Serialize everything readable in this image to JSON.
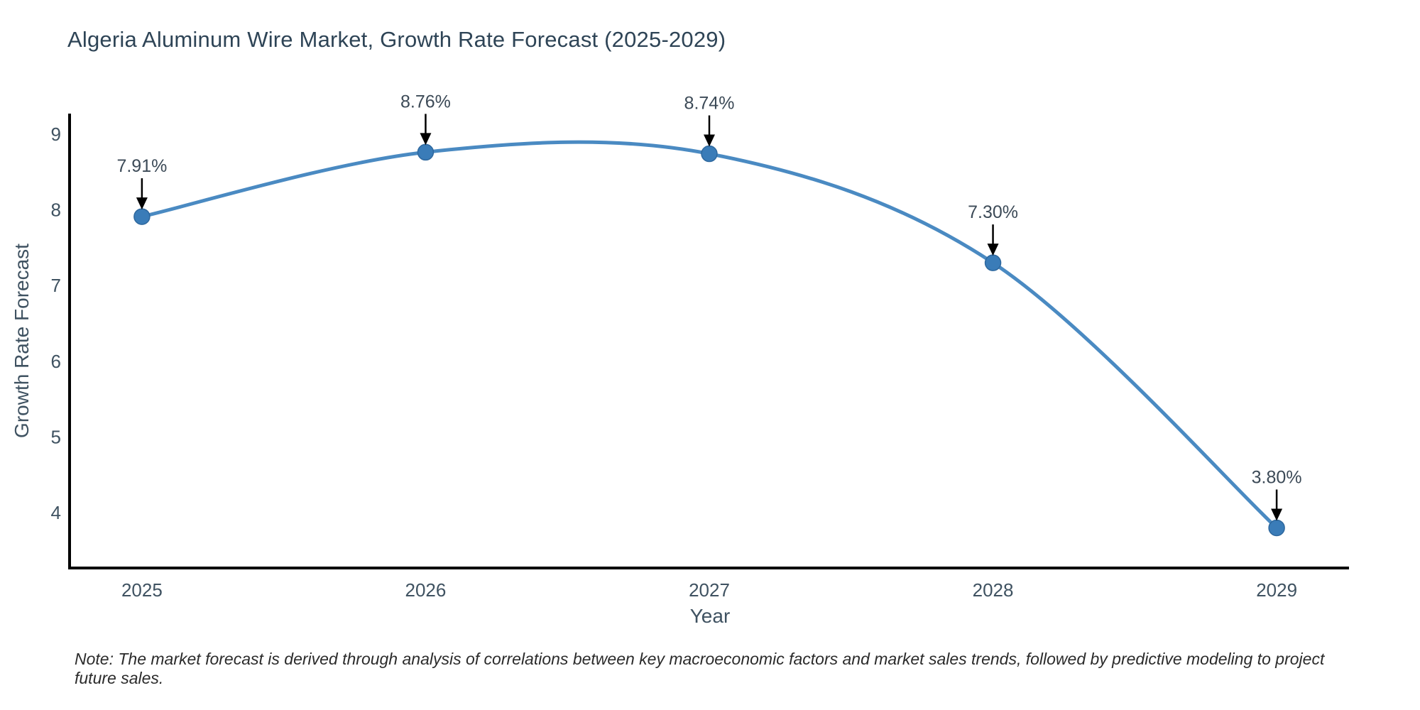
{
  "chart_data": {
    "type": "line",
    "title": "Algeria Aluminum Wire Market, Growth Rate Forecast (2025-2029)",
    "xlabel": "Year",
    "ylabel": "Growth Rate Forecast",
    "x": [
      2025,
      2026,
      2027,
      2028,
      2029
    ],
    "values": [
      7.91,
      8.76,
      8.74,
      7.3,
      3.8
    ],
    "point_labels": [
      "7.91%",
      "8.76%",
      "8.74%",
      "7.30%",
      "3.80%"
    ],
    "xtick_labels": [
      "2025",
      "2026",
      "2027",
      "2028",
      "2029"
    ],
    "ytick_values": [
      4,
      5,
      6,
      7,
      8,
      9
    ],
    "xlim": [
      2024.745,
      2029.255
    ],
    "ylim": [
      3.27,
      9.27
    ],
    "grid": false,
    "legend": "none",
    "line_shape": "spline",
    "line_color": "#4a8ac2",
    "marker_color": "#3a7cb8",
    "marker_edge_color": "#2e689e",
    "axis_color": "#000000",
    "arrow_color": "#000000"
  },
  "note": "Note: The market forecast is derived through analysis of correlations between key macroeconomic factors and market sales trends, followed by predictive modeling to project future sales."
}
